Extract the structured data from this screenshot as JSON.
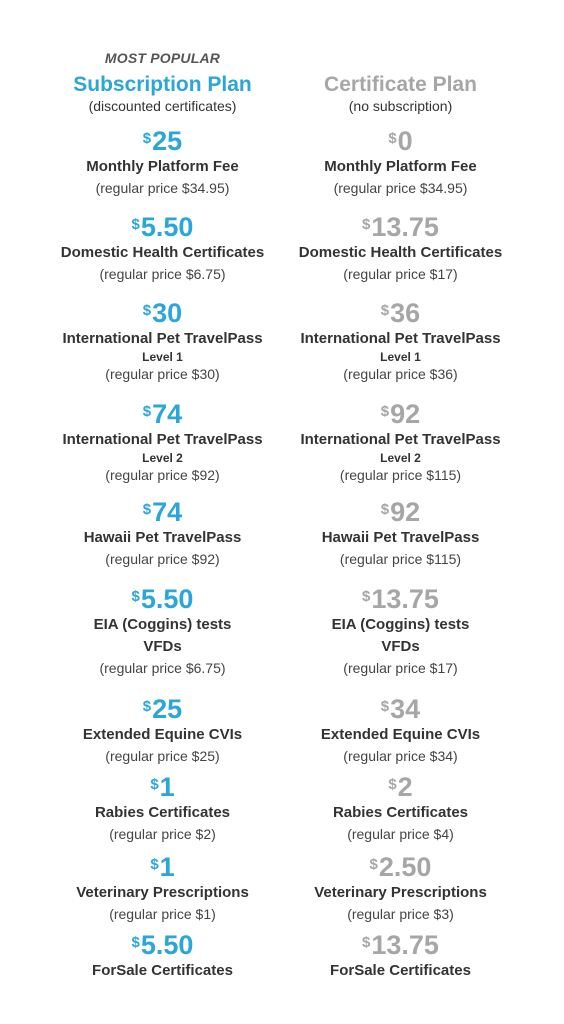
{
  "eyebrow": "MOST POPULAR",
  "plans": [
    {
      "name": "Subscription Plan",
      "sub": "(discounted certificates)",
      "items": [
        {
          "price": "25",
          "lines": [
            "Monthly Platform Fee"
          ],
          "regular": "(regular price $34.95)"
        },
        {
          "price": "5.50",
          "lines": [
            "Domestic Health Certificates"
          ],
          "regular": "(regular price $6.75)"
        },
        {
          "price": "30",
          "lines": [
            "International Pet TravelPass"
          ],
          "level": "Level 1",
          "regular": "(regular price $30)"
        },
        {
          "price": "74",
          "lines": [
            "International Pet TravelPass"
          ],
          "level": "Level 2",
          "regular": "(regular price $92)"
        },
        {
          "price": "74",
          "lines": [
            "Hawaii Pet TravelPass"
          ],
          "regular": "(regular price $92)"
        },
        {
          "price": "5.50",
          "lines": [
            "EIA (Coggins) tests",
            "VFDs"
          ],
          "regular": "(regular price $6.75)"
        },
        {
          "price": "25",
          "lines": [
            "Extended Equine CVIs"
          ],
          "regular": "(regular price $25)"
        },
        {
          "price": "1",
          "lines": [
            "Rabies Certificates"
          ],
          "regular": "(regular price $2)"
        },
        {
          "price": "1",
          "lines": [
            "Veterinary Prescriptions"
          ],
          "regular": "(regular price $1)"
        },
        {
          "price": "5.50",
          "lines": [
            "ForSale Certificates"
          ],
          "regular": ""
        }
      ]
    },
    {
      "name": "Certificate Plan",
      "sub": "(no subscription)",
      "items": [
        {
          "price": "0",
          "lines": [
            "Monthly Platform Fee"
          ],
          "regular": "(regular price $34.95)"
        },
        {
          "price": "13.75",
          "lines": [
            "Domestic Health Certificates"
          ],
          "regular": "(regular price $17)"
        },
        {
          "price": "36",
          "lines": [
            "International Pet TravelPass"
          ],
          "level": "Level 1",
          "regular": "(regular price $36)"
        },
        {
          "price": "92",
          "lines": [
            "International Pet TravelPass"
          ],
          "level": "Level 2",
          "regular": "(regular price $115)"
        },
        {
          "price": "92",
          "lines": [
            "Hawaii Pet TravelPass"
          ],
          "regular": "(regular price $115)"
        },
        {
          "price": "13.75",
          "lines": [
            "EIA (Coggins) tests",
            "VFDs"
          ],
          "regular": "(regular price $17)"
        },
        {
          "price": "34",
          "lines": [
            "Extended Equine CVIs"
          ],
          "regular": "(regular price $34)"
        },
        {
          "price": "2",
          "lines": [
            "Rabies Certificates"
          ],
          "regular": "(regular price $4)"
        },
        {
          "price": "2.50",
          "lines": [
            "Veterinary Prescriptions"
          ],
          "regular": "(regular price $3)"
        },
        {
          "price": "13.75",
          "lines": [
            "ForSale Certificates"
          ],
          "regular": ""
        }
      ]
    }
  ],
  "currency_symbol": "$",
  "colors": {
    "subscription_accent": "#2aa6d9",
    "certificate_accent": "#a6a6a6"
  }
}
